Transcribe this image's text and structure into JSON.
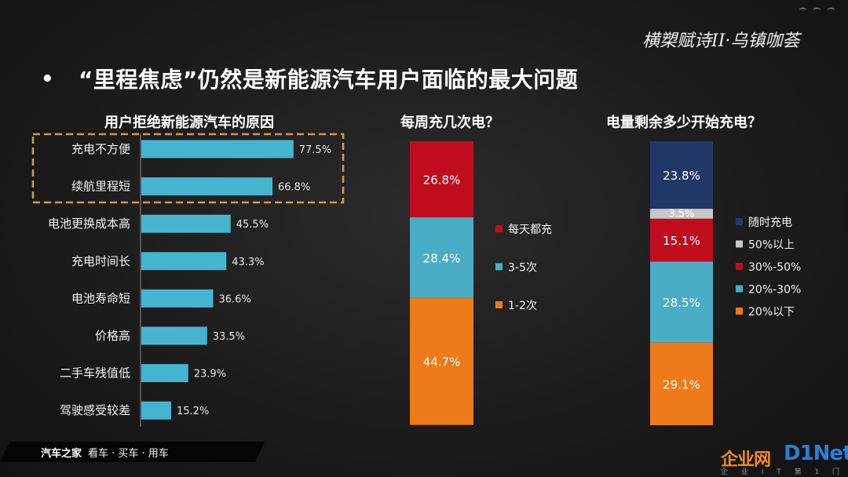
{
  "header": {
    "bullet": "•",
    "title": "“里程焦虑”仍然是新能源汽车用户面临的最大问题",
    "logo": "横槊赋诗II·乌镇咖荟"
  },
  "footer": {
    "brand": "汽车之家",
    "tagline": "看车 · 买车 · 用车"
  },
  "watermark": {
    "cn": "企业网",
    "en": "D1Net",
    "sub": "企 业 I T 第 1 门 户"
  },
  "colors": {
    "bar_blue": "#47b4cf",
    "red": "#c00d1e",
    "teal": "#4aadc6",
    "orange": "#ee7a1a",
    "navy": "#213866",
    "gray": "#c8c8c8",
    "highlight_border": "#d29a4e"
  },
  "chart_data": [
    {
      "type": "bar",
      "orientation": "horizontal",
      "title": "用户拒绝新能源汽车的原因",
      "categories": [
        "充电不方便",
        "续航里程短",
        "电池更换成本高",
        "充电时间长",
        "电池寿命短",
        "价格高",
        "二手车残值低",
        "驾驶感受较差"
      ],
      "values": [
        77.5,
        66.8,
        45.5,
        43.3,
        36.6,
        33.5,
        23.9,
        15.2
      ],
      "value_labels": [
        "77.5%",
        "66.8%",
        "45.5%",
        "43.3%",
        "36.6%",
        "33.5%",
        "23.9%",
        "15.2%"
      ],
      "highlighted": [
        "充电不方便",
        "续航里程短"
      ],
      "xlim": [
        0,
        100
      ],
      "grid": false
    },
    {
      "type": "bar",
      "stacked": true,
      "percent": true,
      "title": "每周充几次电？",
      "series": [
        {
          "name": "每天都充",
          "value": 26.8,
          "label": "26.8%",
          "color": "#c00d1e"
        },
        {
          "name": "3-5次",
          "value": 28.4,
          "label": "28.4%",
          "color": "#4aadc6"
        },
        {
          "name": "1-2次",
          "value": 44.7,
          "label": "44.7%",
          "color": "#ee7a1a"
        }
      ],
      "legend": "right"
    },
    {
      "type": "bar",
      "stacked": true,
      "percent": true,
      "title": "电量剩余多少开始充电？",
      "series": [
        {
          "name": "随时充电",
          "value": 23.8,
          "label": "23.8%",
          "color": "#213866"
        },
        {
          "name": "50%以上",
          "value": 3.5,
          "label": "3.5%",
          "color": "#c8c8c8"
        },
        {
          "name": "30%-50%",
          "value": 15.1,
          "label": "15.1%",
          "color": "#c00d1e"
        },
        {
          "name": "20%-30%",
          "value": 28.5,
          "label": "28.5%",
          "color": "#4aadc6"
        },
        {
          "name": "20%以下",
          "value": 29.1,
          "label": "29.1%",
          "color": "#ee7a1a"
        }
      ],
      "legend": "right"
    }
  ]
}
